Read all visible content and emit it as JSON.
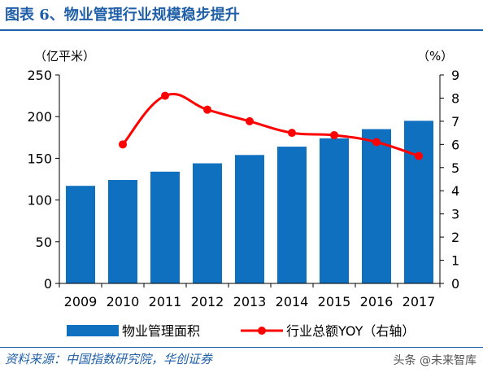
{
  "figure": {
    "title": "图表 6、物业管理行业规模稳步提升",
    "source": "资料来源：中国指数研究院，华创证券",
    "watermark": "头条 @未来智库"
  },
  "colors": {
    "bar": "#1070c0",
    "line": "#ff0000",
    "title": "#1f5fa8",
    "axis": "#000000"
  },
  "chart_data": {
    "type": "bar",
    "categories": [
      "2009",
      "2010",
      "2011",
      "2012",
      "2013",
      "2014",
      "2015",
      "2016",
      "2017"
    ],
    "series": [
      {
        "name": "物业管理面积",
        "type": "bar",
        "axis": "left",
        "values": [
          117,
          124,
          134,
          144,
          154,
          164,
          174,
          185,
          195
        ]
      },
      {
        "name": "行业总额YOY（右轴）",
        "type": "line",
        "axis": "right",
        "values": [
          null,
          6.0,
          8.1,
          7.5,
          7.0,
          6.5,
          6.4,
          6.1,
          5.5
        ]
      }
    ],
    "left_axis": {
      "unit": "（亿平米）",
      "ylim": [
        0,
        250
      ],
      "ticks": [
        "0",
        "50",
        "100",
        "150",
        "200",
        "250"
      ]
    },
    "right_axis": {
      "unit": "（%）",
      "ylim": [
        0,
        9
      ],
      "ticks": [
        "0",
        "1",
        "2",
        "3",
        "4",
        "5",
        "6",
        "7",
        "8",
        "9"
      ]
    },
    "grid": false,
    "legend_position": "bottom"
  }
}
